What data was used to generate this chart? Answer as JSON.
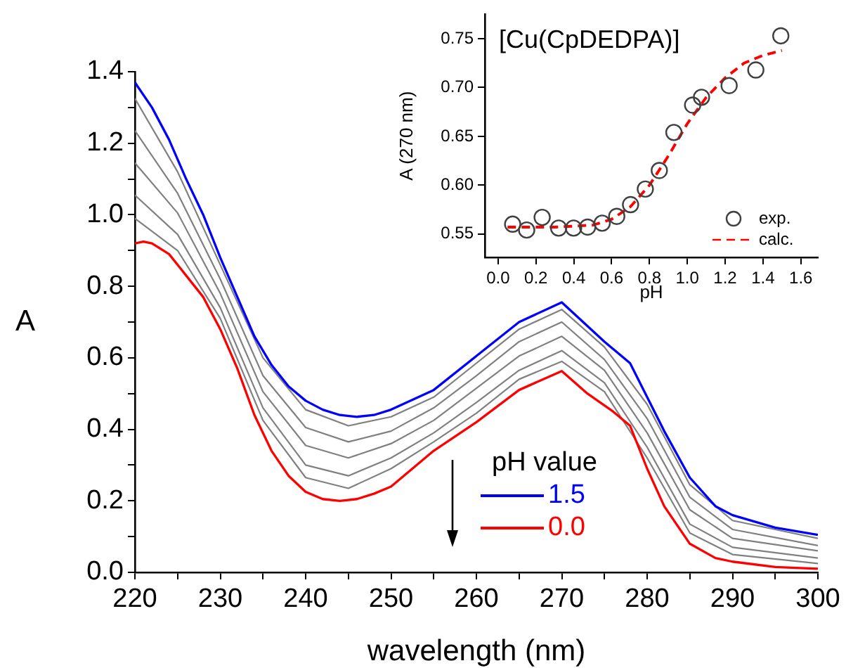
{
  "chart_data": [
    {
      "type": "line",
      "xlabel": "wavelength (nm)",
      "ylabel": "A",
      "legend_title": "pH value",
      "legend": "bottom",
      "xlim": [
        220,
        300
      ],
      "xticks": [
        220,
        {
          "value": 225,
          "label": null
        },
        230,
        {
          "value": 235,
          "label": null
        },
        240,
        {
          "value": 245,
          "label": null
        },
        250,
        {
          "value": 255,
          "label": null
        },
        260,
        {
          "value": 265,
          "label": null
        },
        270,
        {
          "value": 275,
          "label": null
        },
        280,
        {
          "value": 285,
          "label": null
        },
        290,
        {
          "value": 295,
          "label": null
        },
        300
      ],
      "ylim": [
        0,
        1.4
      ],
      "yticks": [
        {
          "value": 0,
          "label": "0.0"
        },
        {
          "value": 0.1,
          "label": null
        },
        0.2,
        {
          "value": 0.3,
          "label": null
        },
        0.4,
        {
          "value": 0.5,
          "label": null
        },
        0.6,
        {
          "value": 0.7,
          "label": null
        },
        0.8,
        {
          "value": 0.9,
          "label": null
        },
        {
          "value": 1.0,
          "label": "1.0"
        },
        {
          "value": 1.1,
          "label": null
        },
        1.2,
        {
          "value": 1.3,
          "label": null
        },
        1.4
      ],
      "series": [
        {
          "color": "#808080",
          "x": [
            220,
            225,
            230,
            235,
            240,
            245,
            250,
            255,
            260,
            265,
            270,
            275,
            280,
            285,
            290,
            300
          ],
          "values": [
            1.325,
            1.12,
            0.86,
            0.6,
            0.455,
            0.41,
            0.435,
            0.49,
            0.585,
            0.68,
            0.735,
            0.63,
            0.47,
            0.245,
            0.145,
            0.095
          ]
        },
        {
          "color": "#808080",
          "x": [
            220,
            225,
            230,
            235,
            240,
            245,
            250,
            255,
            260,
            265,
            270,
            275,
            280,
            285,
            290,
            300
          ],
          "values": [
            1.235,
            1.06,
            0.82,
            0.55,
            0.405,
            0.365,
            0.395,
            0.46,
            0.55,
            0.645,
            0.7,
            0.595,
            0.43,
            0.21,
            0.12,
            0.075
          ]
        },
        {
          "color": "#808080",
          "x": [
            220,
            225,
            230,
            235,
            240,
            245,
            250,
            255,
            260,
            265,
            270,
            275,
            280,
            285,
            290,
            300
          ],
          "values": [
            1.145,
            1.005,
            0.78,
            0.505,
            0.355,
            0.32,
            0.36,
            0.425,
            0.515,
            0.605,
            0.66,
            0.565,
            0.39,
            0.175,
            0.095,
            0.06
          ]
        },
        {
          "color": "#808080",
          "x": [
            220,
            225,
            230,
            235,
            240,
            245,
            250,
            255,
            260,
            265,
            270,
            275,
            280,
            285,
            290,
            300
          ],
          "values": [
            1.055,
            0.945,
            0.74,
            0.46,
            0.3,
            0.27,
            0.32,
            0.39,
            0.475,
            0.565,
            0.62,
            0.53,
            0.35,
            0.135,
            0.07,
            0.04
          ]
        },
        {
          "color": "#808080",
          "x": [
            220,
            225,
            230,
            235,
            240,
            245,
            250,
            255,
            260,
            265,
            270,
            275,
            280,
            285,
            290,
            300
          ],
          "values": [
            0.99,
            0.9,
            0.71,
            0.425,
            0.265,
            0.235,
            0.29,
            0.365,
            0.445,
            0.54,
            0.59,
            0.505,
            0.32,
            0.11,
            0.05,
            0.025
          ]
        },
        {
          "name": "1.5",
          "color": "#0000ff",
          "x": [
            220,
            222,
            224,
            226,
            228,
            230,
            232,
            234,
            236,
            238,
            240,
            242,
            244,
            246,
            248,
            250,
            255,
            260,
            265,
            270,
            275,
            278,
            280,
            282,
            285,
            288,
            290,
            295,
            300
          ],
          "values": [
            1.37,
            1.3,
            1.21,
            1.1,
            1.0,
            0.88,
            0.77,
            0.66,
            0.58,
            0.52,
            0.48,
            0.455,
            0.44,
            0.435,
            0.44,
            0.455,
            0.51,
            0.605,
            0.7,
            0.755,
            0.645,
            0.585,
            0.49,
            0.395,
            0.265,
            0.185,
            0.16,
            0.125,
            0.105
          ]
        },
        {
          "name": "0.0",
          "color": "#ff0000",
          "x": [
            220,
            221,
            222,
            224,
            226,
            228,
            230,
            232,
            234,
            236,
            238,
            240,
            242,
            244,
            246,
            248,
            250,
            255,
            260,
            265,
            270,
            273,
            276,
            278,
            280,
            282,
            285,
            288,
            290,
            295,
            300
          ],
          "values": [
            0.92,
            0.925,
            0.92,
            0.89,
            0.83,
            0.77,
            0.68,
            0.57,
            0.44,
            0.34,
            0.27,
            0.225,
            0.205,
            0.2,
            0.205,
            0.22,
            0.24,
            0.34,
            0.42,
            0.51,
            0.563,
            0.5,
            0.45,
            0.41,
            0.29,
            0.185,
            0.08,
            0.04,
            0.03,
            0.015,
            0.01
          ]
        }
      ]
    },
    {
      "type": "scatter",
      "xlabel": "pH",
      "ylabel": "A (270 nm)",
      "annotations": [
        "[Cu(CpDEDPA)]"
      ],
      "legend": "bottom right",
      "xlim": [
        -0.07,
        1.69
      ],
      "xticks": [
        {
          "value": 0,
          "label": "0.0"
        },
        0.2,
        0.4,
        0.6,
        0.8,
        {
          "value": 1.0,
          "label": "1.0"
        },
        1.2,
        1.4,
        1.6
      ],
      "ylim": [
        0.526,
        0.775
      ],
      "yticks": [
        0.55,
        {
          "value": 0.6,
          "label": "0.60"
        },
        0.65,
        {
          "value": 0.7,
          "label": "0.70"
        },
        0.75
      ],
      "series": [
        {
          "name": "exp.",
          "marker": "circle",
          "color": "#404040",
          "x": [
            0.077,
            0.151,
            0.233,
            0.32,
            0.399,
            0.473,
            0.55,
            0.627,
            0.7,
            0.778,
            0.852,
            0.929,
            1.028,
            1.075,
            1.221,
            1.362,
            1.494
          ],
          "values": [
            0.56,
            0.554,
            0.567,
            0.556,
            0.556,
            0.557,
            0.561,
            0.568,
            0.58,
            0.596,
            0.615,
            0.654,
            0.682,
            0.69,
            0.702,
            0.718,
            0.753
          ]
        },
        {
          "name": "calc.",
          "type": "line",
          "line_style": "dashed",
          "color": "#ff0000",
          "x": [
            0.05,
            0.3,
            0.5,
            0.6,
            0.7,
            0.8,
            0.9,
            1.0,
            1.1,
            1.2,
            1.3,
            1.4,
            1.5
          ],
          "values": [
            0.557,
            0.557,
            0.559,
            0.565,
            0.578,
            0.6,
            0.63,
            0.663,
            0.69,
            0.71,
            0.725,
            0.733,
            0.738
          ]
        }
      ]
    }
  ]
}
